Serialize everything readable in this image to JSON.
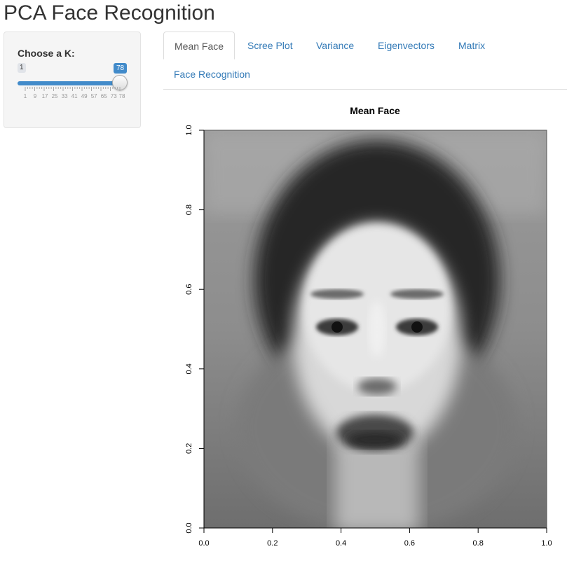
{
  "app": {
    "title": "PCA Face Recognition"
  },
  "sidebar": {
    "label": "Choose a K:",
    "slider": {
      "min": "1",
      "max": "78",
      "value": "78",
      "ticks": [
        "1",
        "9",
        "17",
        "25",
        "33",
        "41",
        "49",
        "57",
        "65",
        "73",
        "78"
      ],
      "accent": "#428bca"
    }
  },
  "tabs": [
    {
      "label": "Mean Face",
      "active": true
    },
    {
      "label": "Scree Plot",
      "active": false
    },
    {
      "label": "Variance",
      "active": false
    },
    {
      "label": "Eigenvectors",
      "active": false
    },
    {
      "label": "Matrix",
      "active": false
    },
    {
      "label": "Face Recognition",
      "active": false
    }
  ],
  "plot": {
    "title": "Mean Face",
    "x_ticks": [
      "0.0",
      "0.2",
      "0.4",
      "0.6",
      "0.8",
      "1.0"
    ],
    "y_ticks": [
      "0.0",
      "0.2",
      "0.4",
      "0.6",
      "0.8",
      "1.0"
    ],
    "image": "grayscale-mean-face"
  }
}
